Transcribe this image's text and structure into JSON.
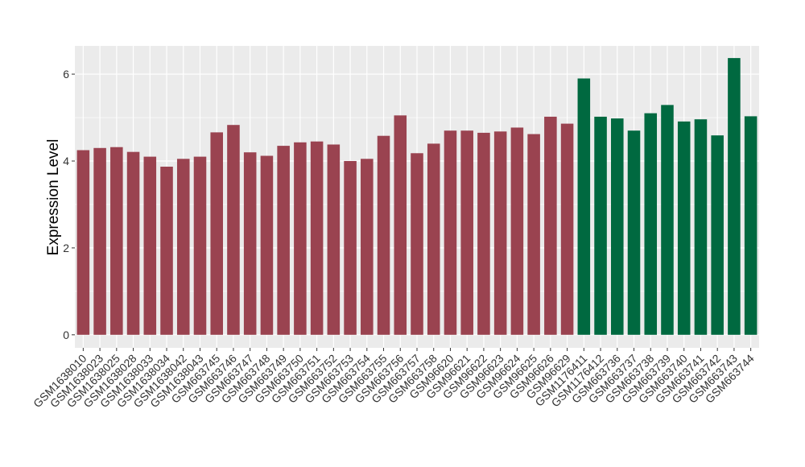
{
  "chart_data": {
    "type": "bar",
    "ylabel": "Expression Level",
    "xlabel": "",
    "ylim": [
      -0.3,
      6.65
    ],
    "yticks": [
      0,
      2,
      4,
      6
    ],
    "grid": true,
    "categories": [
      "GSM1638010",
      "GSM1638023",
      "GSM1638025",
      "GSM1638028",
      "GSM1638033",
      "GSM1638034",
      "GSM1638042",
      "GSM1638043",
      "GSM663745",
      "GSM663746",
      "GSM663747",
      "GSM663748",
      "GSM663749",
      "GSM663750",
      "GSM663751",
      "GSM663752",
      "GSM663753",
      "GSM663754",
      "GSM663755",
      "GSM663756",
      "GSM663757",
      "GSM663758",
      "GSM96620",
      "GSM96621",
      "GSM96622",
      "GSM96623",
      "GSM96624",
      "GSM96625",
      "GSM96626",
      "GSM96629",
      "GSM1176411",
      "GSM1176412",
      "GSM663736",
      "GSM663737",
      "GSM663738",
      "GSM663739",
      "GSM663740",
      "GSM663741",
      "GSM663742",
      "GSM663743",
      "GSM663744"
    ],
    "values": [
      4.25,
      4.3,
      4.32,
      4.21,
      4.1,
      3.87,
      4.05,
      4.1,
      4.66,
      4.83,
      4.2,
      4.12,
      4.35,
      4.43,
      4.45,
      4.38,
      4.0,
      4.05,
      4.58,
      5.05,
      4.18,
      4.4,
      4.7,
      4.7,
      4.65,
      4.68,
      4.77,
      4.62,
      5.02,
      4.86,
      5.9,
      5.02,
      4.98,
      4.7,
      5.1,
      5.29,
      4.91,
      4.96,
      4.59,
      6.37,
      5.03
    ],
    "groups": [
      "a",
      "a",
      "a",
      "a",
      "a",
      "a",
      "a",
      "a",
      "a",
      "a",
      "a",
      "a",
      "a",
      "a",
      "a",
      "a",
      "a",
      "a",
      "a",
      "a",
      "a",
      "a",
      "a",
      "a",
      "a",
      "a",
      "a",
      "a",
      "a",
      "a",
      "b",
      "b",
      "b",
      "b",
      "b",
      "b",
      "b",
      "b",
      "b",
      "b",
      "b"
    ],
    "colors": {
      "a": "#9a4350",
      "b": "#006940"
    },
    "panel_bg": "#ebebeb",
    "grid_color": "#ffffff"
  }
}
